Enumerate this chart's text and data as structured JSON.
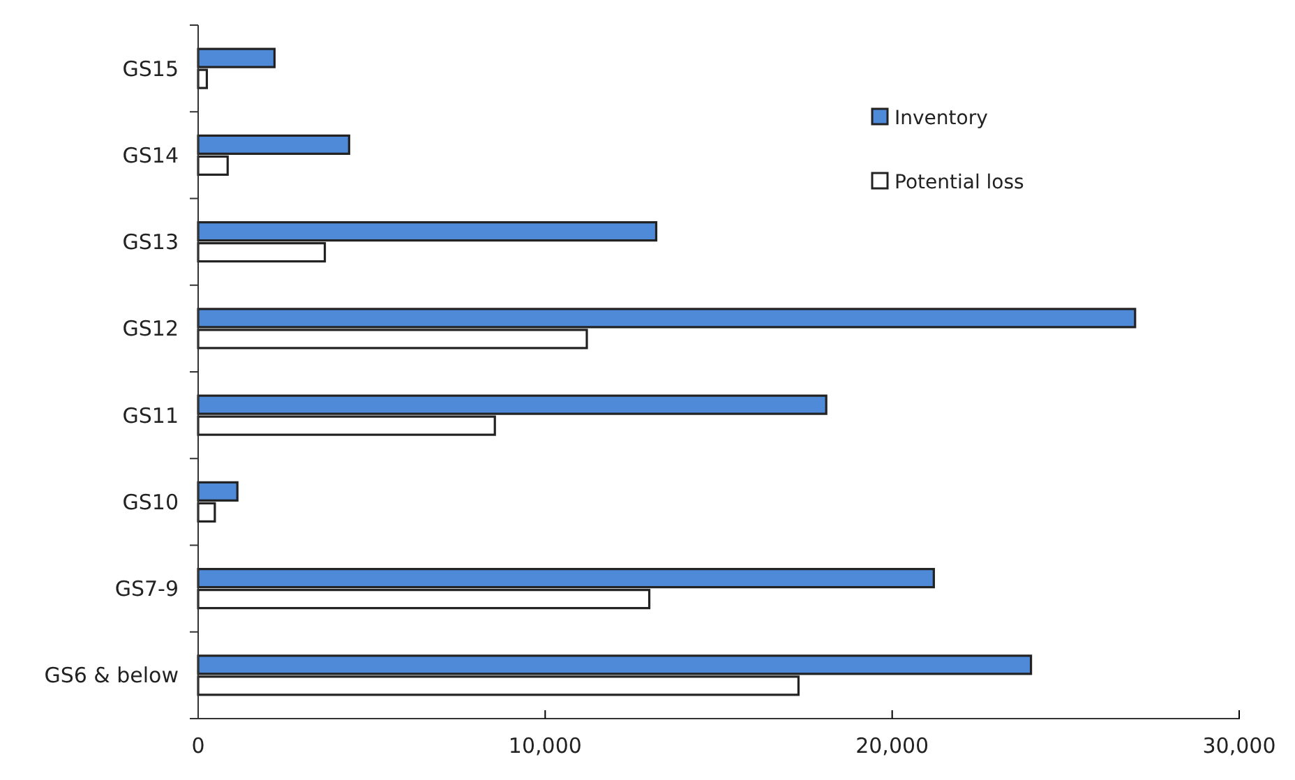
{
  "chart_data": {
    "type": "bar",
    "orientation": "horizontal",
    "categories": [
      "GS15",
      "GS14",
      "GS13",
      "GS12",
      "GS11",
      "GS10",
      "GS7-9",
      "GS6 & below"
    ],
    "series": [
      {
        "name": "Inventory",
        "color": "#4f8ad8",
        "values": [
          2200,
          4350,
          13200,
          27000,
          18100,
          1130,
          21200,
          24000
        ]
      },
      {
        "name": "Potential loss",
        "color": "#ffffff",
        "values": [
          250,
          850,
          3650,
          11200,
          8550,
          480,
          13000,
          17300
        ]
      }
    ],
    "xlim": [
      0,
      30000
    ],
    "xticks": [
      {
        "value": 0,
        "label": "0"
      },
      {
        "value": 10000,
        "label": "10,000"
      },
      {
        "value": 20000,
        "label": "20,000"
      },
      {
        "value": 30000,
        "label": "30,000"
      }
    ],
    "grid": false,
    "legend": "top right"
  }
}
